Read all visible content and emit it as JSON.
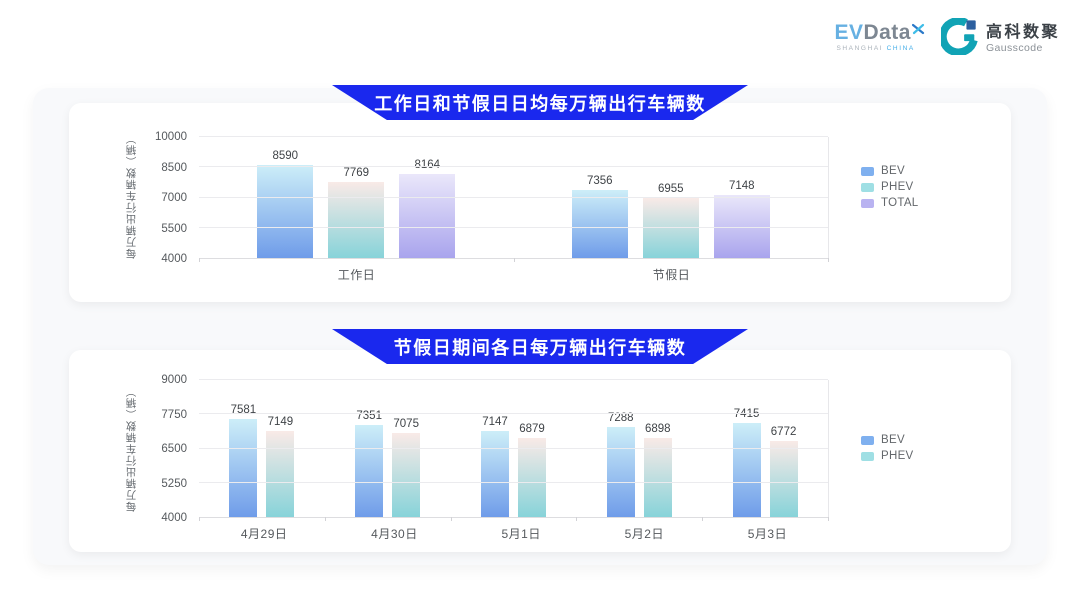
{
  "colors": {
    "banner_blue": "#1a28ee",
    "panel_bg": "#f8f9fb",
    "card_bg": "#ffffff",
    "gausscode_teal": "#11a3b5",
    "gausscode_blue": "#2c5f9f",
    "evdata_blue": "#66b0e2",
    "evdata_gray": "#7d8792"
  },
  "logos": {
    "evdata": {
      "wordmark_part1": "EV",
      "wordmark_part2": "Data",
      "subtext_left": "SHANGHAI ",
      "subtext_right": "CHINA"
    },
    "gausscode": {
      "name_cn": "高科数聚",
      "name_en": "Gausscode"
    }
  },
  "series_colors": {
    "BEV": {
      "top": "#cdeef8",
      "bottom": "#6f9ce9",
      "legend": "#7fb0ef"
    },
    "PHEV": {
      "top": "#f9eae7",
      "bottom": "#87d3d9",
      "legend": "#9fdfe4"
    },
    "TOTAL": {
      "top": "#eae7fa",
      "bottom": "#a9a4ed",
      "legend": "#b9b3f1"
    }
  },
  "chart_data": [
    {
      "type": "bar",
      "title": "工作日和节假日日均每万辆出行车辆数",
      "categories": [
        "工作日",
        "节假日"
      ],
      "series": [
        {
          "name": "BEV",
          "values": [
            8590,
            7356
          ]
        },
        {
          "name": "PHEV",
          "values": [
            7769,
            6955
          ]
        },
        {
          "name": "TOTAL",
          "values": [
            8164,
            7148
          ]
        }
      ],
      "xlabel": "",
      "ylabel": "每万辆出行车辆数（辆）",
      "ylim": [
        4000,
        10000
      ],
      "yticks": [
        4000,
        5500,
        7000,
        8500,
        10000
      ],
      "grid": true,
      "legend_position": "right"
    },
    {
      "type": "bar",
      "title": "节假日期间各日每万辆出行车辆数",
      "categories": [
        "4月29日",
        "4月30日",
        "5月1日",
        "5月2日",
        "5月3日"
      ],
      "series": [
        {
          "name": "BEV",
          "values": [
            7581,
            7351,
            7147,
            7288,
            7415
          ]
        },
        {
          "name": "PHEV",
          "values": [
            7149,
            7075,
            6879,
            6898,
            6772
          ]
        }
      ],
      "xlabel": "",
      "ylabel": "每万辆出行车辆数（辆）",
      "ylim": [
        4000,
        9000
      ],
      "yticks": [
        4000,
        5250,
        6500,
        7750,
        9000
      ],
      "grid": true,
      "legend_position": "right"
    }
  ]
}
